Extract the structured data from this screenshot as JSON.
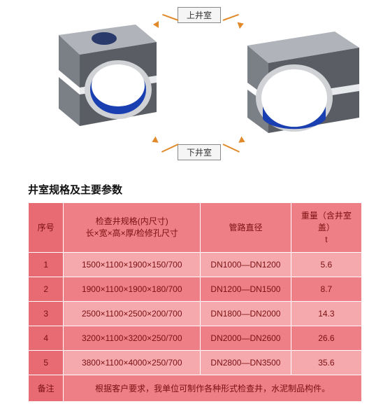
{
  "diagram": {
    "top_label": "上井室",
    "bottom_label": "下井室",
    "chamber_body_color": "#7b7f86",
    "chamber_top_color": "#b0b4ba",
    "chamber_side_color": "#5a5e64",
    "hole_color": "#2a3a6a",
    "circle_fill": "#1a3fb0",
    "circle_stroke": "#d0d2d6",
    "arrow_color": "#e08a2a",
    "label_border": "#888888",
    "label_bg": "#f5f5f5"
  },
  "section_title": "井室规格及主要参数",
  "table": {
    "header_bg": "#ef7f86",
    "row_bg_a": "#f6a9ad",
    "row_bg_b": "#ef7f86",
    "serial_bg": "#e86b73",
    "border_color": "#ffffff",
    "text_color": "#7a1012",
    "columns": {
      "serial": "序号",
      "spec_line1": "检查井规格(内尺寸)",
      "spec_line2": "长×宽×高×厚/检修孔尺寸",
      "diameter": "管路直径",
      "weight_line1": "重量（含井室盖）",
      "weight_line2": "t"
    },
    "rows": [
      {
        "n": "1",
        "spec": "1500×1100×1900×150/700",
        "dia": "DN1000—DN1200",
        "wt": "5.6"
      },
      {
        "n": "2",
        "spec": "1900×1100×1900×180/700",
        "dia": "DN1200—DN1500",
        "wt": "8.7"
      },
      {
        "n": "3",
        "spec": "2500×1100×2500×200/700",
        "dia": "DN1800—DN2000",
        "wt": "14.3"
      },
      {
        "n": "4",
        "spec": "3200×1100×3200×250/700",
        "dia": "DN2000—DN2600",
        "wt": "26.6"
      },
      {
        "n": "5",
        "spec": "3800×1100×4000×250/700",
        "dia": "DN2800—DN3500",
        "wt": "35.6"
      }
    ],
    "footer_label": "备注",
    "footer_text": "根据客户要求，我单位可制作各种形式检查井，水泥制品构件。"
  }
}
